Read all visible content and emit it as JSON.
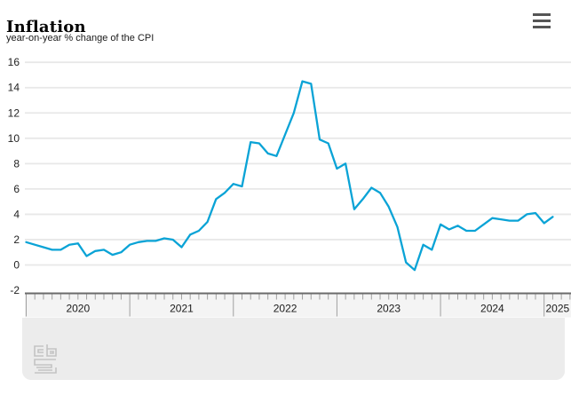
{
  "header": {
    "title": "Inflation",
    "subtitle": "year-on-year % change of the CPI"
  },
  "menu": {
    "icon": "hamburger-icon"
  },
  "chart_data": {
    "type": "line",
    "title": "Inflation",
    "subtitle": "year-on-year % change of the CPI",
    "x_start": "2020-01",
    "x_interval": "month",
    "x_year_labels": [
      "2020",
      "2021",
      "2022",
      "2023",
      "2024",
      "2025"
    ],
    "ylim": [
      -2,
      16
    ],
    "y_ticks": [
      16,
      14,
      12,
      10,
      8,
      6,
      4,
      2,
      0,
      -2
    ],
    "grid": true,
    "legend": "none",
    "line_color": "#0aa3d6",
    "gridline_color": "#e8e8e8",
    "axis_line_color": "#6b6b6b",
    "tick_color": "#a0a0a0",
    "label_color": "#222222",
    "series": [
      {
        "name": "CPI year-on-year % change",
        "values": [
          1.8,
          1.6,
          1.4,
          1.2,
          1.2,
          1.6,
          1.7,
          0.7,
          1.1,
          1.2,
          0.8,
          1.0,
          1.6,
          1.8,
          1.9,
          1.9,
          2.1,
          2.0,
          1.4,
          2.4,
          2.7,
          3.4,
          5.2,
          5.7,
          6.4,
          6.2,
          9.7,
          9.6,
          8.8,
          8.6,
          10.3,
          12.0,
          14.5,
          14.3,
          9.9,
          9.6,
          7.6,
          8.0,
          4.4,
          5.2,
          6.1,
          5.7,
          4.6,
          3.0,
          0.2,
          -0.4,
          1.6,
          1.2,
          3.2,
          2.8,
          3.1,
          2.7,
          2.7,
          3.2,
          3.7,
          3.6,
          3.5,
          3.5,
          4.0,
          4.1,
          3.3,
          3.8
        ]
      }
    ]
  },
  "footer": {
    "logo": "cbs-logo"
  }
}
